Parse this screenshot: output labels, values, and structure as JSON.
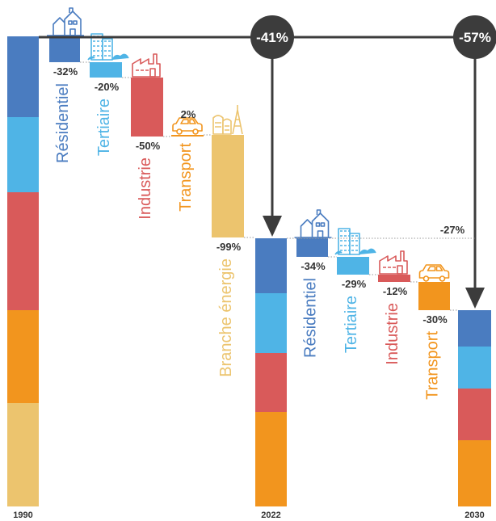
{
  "chart_data": {
    "type": "bar",
    "colors": {
      "residentiel": "#4a7cc0",
      "tertiaire": "#4fb4e6",
      "industrie": "#d95a5a",
      "transport": "#f2951e",
      "energie": "#ecc46e",
      "arrow": "#3c3c3c"
    },
    "totals": [
      {
        "year": "1990",
        "segments": [
          {
            "sector": "residentiel",
            "value": 100
          },
          {
            "sector": "tertiaire",
            "value": 93
          },
          {
            "sector": "industrie",
            "value": 146
          },
          {
            "sector": "transport",
            "value": 115
          },
          {
            "sector": "energie",
            "value": 128
          }
        ]
      },
      {
        "year": "2022",
        "segments": [
          {
            "sector": "residentiel",
            "value": 68
          },
          {
            "sector": "tertiaire",
            "value": 74
          },
          {
            "sector": "industrie",
            "value": 73
          },
          {
            "sector": "transport",
            "value": 117
          }
        ]
      },
      {
        "year": "2030",
        "segments": [
          {
            "sector": "residentiel",
            "value": 45
          },
          {
            "sector": "tertiaire",
            "value": 52
          },
          {
            "sector": "industrie",
            "value": 64
          },
          {
            "sector": "transport",
            "value": 82
          }
        ]
      }
    ],
    "changes": [
      {
        "period": "1990-2022",
        "sector": "residentiel",
        "label": "Résidentiel",
        "change": "-32%",
        "icon": "house-icon",
        "delta": -32
      },
      {
        "period": "1990-2022",
        "sector": "tertiaire",
        "label": "Tertiaire",
        "change": "-20%",
        "icon": "office-building-icon",
        "delta": -19
      },
      {
        "period": "1990-2022",
        "sector": "industrie",
        "label": "Industrie",
        "change": "-50%",
        "icon": "factory-icon",
        "delta": -73
      },
      {
        "period": "1990-2022",
        "sector": "transport",
        "label": "Transport",
        "change": "2%",
        "icon": "car-icon",
        "delta": 2
      },
      {
        "period": "1990-2022",
        "sector": "energie",
        "label": "Branche énergie",
        "change": "-99%",
        "icon": "refinery-icon",
        "delta": -127
      },
      {
        "period": "2022-2030",
        "sector": "residentiel",
        "label": "Résidentiel",
        "change": "-34%",
        "icon": "house-icon",
        "delta": -23
      },
      {
        "period": "2022-2030",
        "sector": "tertiaire",
        "label": "Tertiaire",
        "change": "-29%",
        "icon": "office-building-icon",
        "delta": -22
      },
      {
        "period": "2022-2030",
        "sector": "industrie",
        "label": "Industrie",
        "change": "-12%",
        "icon": "factory-icon",
        "delta": -9
      },
      {
        "period": "2022-2030",
        "sector": "transport",
        "label": "Transport",
        "change": "-30%",
        "icon": "car-icon",
        "delta": -35
      }
    ],
    "overall": [
      {
        "period": "1990-2022",
        "change": "-41%"
      },
      {
        "period": "2022-2030",
        "change": "-27%"
      },
      {
        "period": "1990-2030",
        "change": "-57%"
      }
    ]
  }
}
